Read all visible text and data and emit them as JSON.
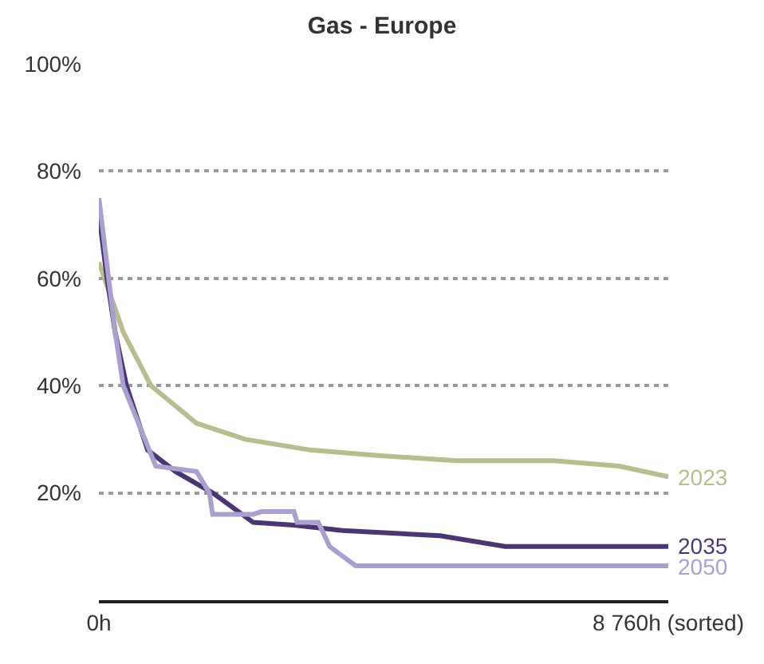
{
  "chart_data": {
    "type": "line",
    "title": "Gas - Europe",
    "xlim": [
      0,
      8760
    ],
    "xticks": [
      {
        "value": 0,
        "label": "0h"
      },
      {
        "value": 8760,
        "label": "8 760h (sorted)"
      }
    ],
    "ylim": [
      0,
      100
    ],
    "yticks": [
      {
        "value": 20,
        "label": "20%"
      },
      {
        "value": 40,
        "label": "40%"
      },
      {
        "value": 60,
        "label": "60%"
      },
      {
        "value": 80,
        "label": "80%"
      },
      {
        "value": 100,
        "label": "100%"
      }
    ],
    "grid": "y",
    "legend": false,
    "marker": "none",
    "line_style": "solid",
    "series": [
      {
        "name": "2023",
        "color": "#b8bc8e",
        "x": [
          0,
          375,
          800,
          1500,
          2250,
          3250,
          4250,
          5500,
          7000,
          8000,
          8760
        ],
        "values": [
          63,
          50,
          40,
          33,
          30,
          28,
          27,
          26,
          26,
          25,
          23
        ]
      },
      {
        "name": "2035",
        "color": "#4a3672",
        "x": [
          0,
          125,
          250,
          425,
          750,
          1175,
          1750,
          2375,
          3000,
          3750,
          5250,
          6250,
          8760
        ],
        "values": [
          72,
          60,
          50,
          40,
          28,
          24,
          20,
          14.5,
          14,
          13,
          12,
          10,
          10
        ]
      },
      {
        "name": "2050",
        "color": "#ab9fd0",
        "x": [
          0,
          50,
          250,
          375,
          875,
          1500,
          1700,
          1750,
          2375,
          2500,
          3000,
          3050,
          3375,
          3550,
          3950,
          8760
        ],
        "values": [
          75,
          70,
          50,
          40,
          25,
          24,
          20,
          16,
          16,
          16.5,
          16.5,
          14.5,
          14.5,
          10,
          6.4,
          6.4
        ]
      }
    ]
  }
}
